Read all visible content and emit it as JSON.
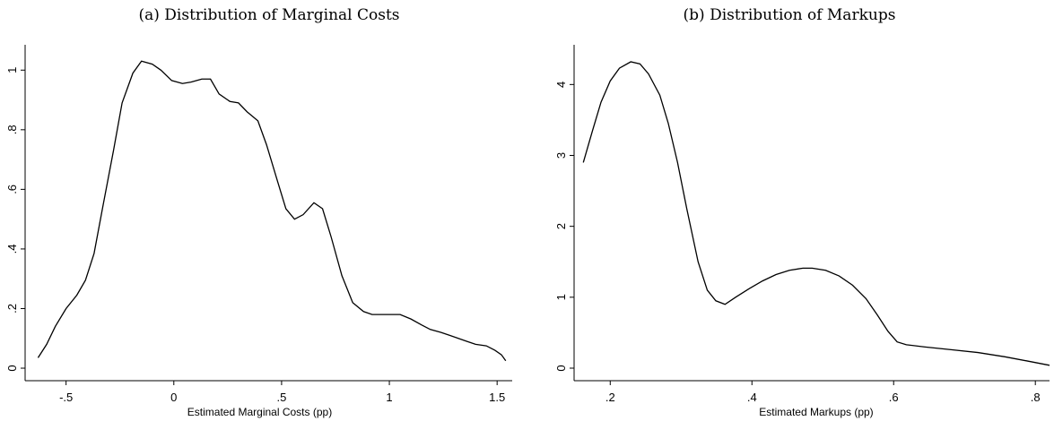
{
  "chart_data": [
    {
      "type": "line",
      "title": "(a) Distribution of Marginal Costs",
      "x_label": "Estimated Marginal Costs (pp)",
      "x": [
        -0.63,
        -0.59,
        -0.55,
        -0.5,
        -0.45,
        -0.41,
        -0.37,
        -0.33,
        -0.28,
        -0.24,
        -0.19,
        -0.15,
        -0.1,
        -0.06,
        -0.01,
        0.04,
        0.08,
        0.13,
        0.17,
        0.21,
        0.26,
        0.3,
        0.34,
        0.39,
        0.43,
        0.48,
        0.52,
        0.56,
        0.6,
        0.65,
        0.69,
        0.73,
        0.78,
        0.83,
        0.88,
        0.92,
        0.97,
        1.01,
        1.05,
        1.1,
        1.15,
        1.19,
        1.24,
        1.28,
        1.32,
        1.36,
        1.4,
        1.45,
        1.49,
        1.52,
        1.54
      ],
      "series": [
        {
          "color": "#000000",
          "values": [
            0.035,
            0.08,
            0.14,
            0.2,
            0.245,
            0.295,
            0.385,
            0.54,
            0.73,
            0.89,
            0.99,
            1.03,
            1.02,
            1.0,
            0.965,
            0.955,
            0.96,
            0.97,
            0.97,
            0.92,
            0.895,
            0.89,
            0.86,
            0.83,
            0.75,
            0.63,
            0.535,
            0.5,
            0.515,
            0.555,
            0.535,
            0.44,
            0.31,
            0.22,
            0.19,
            0.18,
            0.18,
            0.18,
            0.18,
            0.165,
            0.145,
            0.13,
            0.12,
            0.11,
            0.1,
            0.09,
            0.08,
            0.075,
            0.06,
            0.045,
            0.025
          ]
        }
      ],
      "xlim": [
        -0.69,
        1.57
      ],
      "ylim": [
        -0.042,
        1.085
      ],
      "xticks": [
        {
          "value": -0.5,
          "label": "-.5"
        },
        0,
        {
          "value": 0.5,
          "label": ".5"
        },
        1,
        {
          "value": 1.5,
          "label": "1.5"
        }
      ],
      "yticks": [
        0,
        {
          "value": 0.2,
          "label": ".2"
        },
        {
          "value": 0.4,
          "label": ".4"
        },
        {
          "value": 0.6,
          "label": ".6"
        },
        {
          "value": 0.8,
          "label": ".8"
        },
        1
      ]
    },
    {
      "type": "line",
      "title": "(b) Distribution of Markups",
      "x_label": "Estimated Markups (pp)",
      "x": [
        0.162,
        0.175,
        0.187,
        0.2,
        0.213,
        0.229,
        0.242,
        0.254,
        0.27,
        0.282,
        0.295,
        0.308,
        0.324,
        0.337,
        0.349,
        0.362,
        0.377,
        0.396,
        0.415,
        0.434,
        0.453,
        0.472,
        0.485,
        0.504,
        0.523,
        0.542,
        0.561,
        0.577,
        0.592,
        0.605,
        0.618,
        0.643,
        0.681,
        0.719,
        0.757,
        0.789,
        0.82
      ],
      "series": [
        {
          "color": "#000000",
          "values": [
            2.9,
            3.35,
            3.75,
            4.05,
            4.23,
            4.32,
            4.29,
            4.15,
            3.85,
            3.45,
            2.9,
            2.25,
            1.5,
            1.1,
            0.95,
            0.9,
            1.0,
            1.12,
            1.23,
            1.32,
            1.38,
            1.41,
            1.41,
            1.38,
            1.3,
            1.17,
            0.98,
            0.75,
            0.52,
            0.37,
            0.33,
            0.3,
            0.26,
            0.22,
            0.16,
            0.1,
            0.04
          ]
        }
      ],
      "xlim": [
        0.149,
        0.82
      ],
      "ylim": [
        -0.177,
        4.56
      ],
      "xticks": [
        {
          "value": 0.2,
          "label": ".2"
        },
        {
          "value": 0.4,
          "label": ".4"
        },
        {
          "value": 0.6,
          "label": ".6"
        },
        {
          "value": 0.8,
          "label": ".8"
        }
      ],
      "yticks": [
        0,
        1,
        2,
        3,
        4
      ]
    }
  ]
}
